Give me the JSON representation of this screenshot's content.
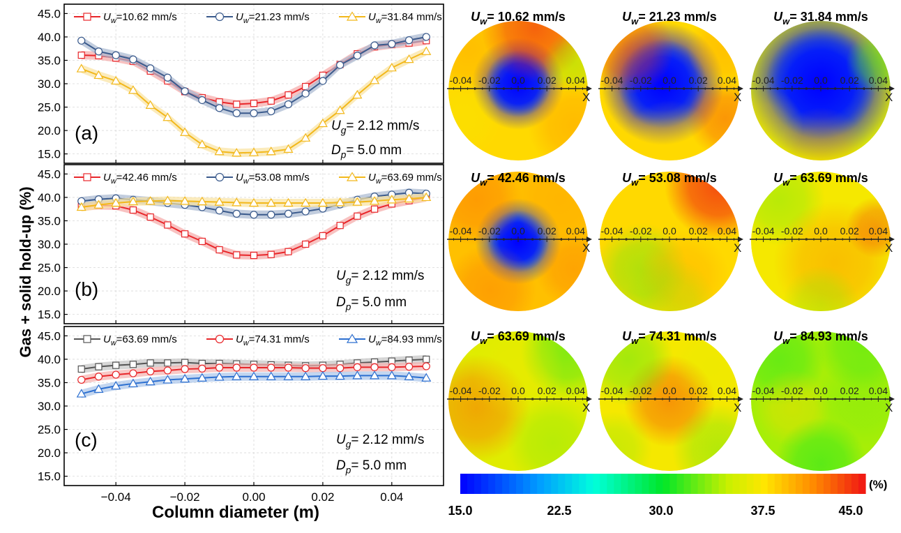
{
  "chart_data": {
    "type": "line",
    "shared_ylabel": "Gas + solid hold-up (%)",
    "shared_xlabel": "Column diameter (m)",
    "xlim": [
      -0.055,
      0.055
    ],
    "ylim": [
      13,
      47
    ],
    "x": [
      -0.05,
      -0.045,
      -0.04,
      -0.035,
      -0.03,
      -0.025,
      -0.02,
      -0.015,
      -0.01,
      -0.005,
      0.0,
      0.005,
      0.01,
      0.015,
      0.02,
      0.025,
      0.03,
      0.035,
      0.04,
      0.045,
      0.05
    ],
    "x_ticks": [
      -0.04,
      -0.02,
      0.0,
      0.02,
      0.04
    ],
    "x_tick_labels": [
      "−0.04",
      "−0.02",
      "0.00",
      "0.02",
      "0.04"
    ],
    "y_ticks": [
      15,
      20,
      25,
      30,
      35,
      40,
      45
    ],
    "y_tick_labels": [
      "15.0",
      "20.0",
      "25.0",
      "30.0",
      "35.0",
      "40.0",
      "45.0"
    ],
    "panels": [
      {
        "panel_label": "(a)",
        "ann_ug_sym": "U",
        "ann_ug_sub": "g",
        "ann_ug_val": "= 2.12 mm/s",
        "ann_dp_sym": "D",
        "ann_dp_sub": "p",
        "ann_dp_val": "= 5.0 mm",
        "series": [
          {
            "legend_sym": "U",
            "legend_sub": "w",
            "legend_val": "=10.62 mm/s",
            "color": "#e8262a",
            "band": "#f5a8a6",
            "marker": "square",
            "values": [
              36.1,
              36.0,
              35.5,
              34.8,
              32.7,
              30.6,
              28.3,
              27.0,
              26.1,
              25.6,
              25.8,
              26.3,
              27.6,
              29.4,
              31.8,
              34.1,
              36.4,
              37.9,
              38.4,
              38.7,
              39.2
            ]
          },
          {
            "legend_sym": "U",
            "legend_sub": "w",
            "legend_val": "=21.23 mm/s",
            "color": "#3a5a8c",
            "band": "#a8b8d0",
            "marker": "circle",
            "values": [
              39.2,
              36.9,
              36.1,
              35.2,
              33.3,
              31.3,
              28.4,
              26.5,
              24.8,
              23.7,
              23.7,
              24.1,
              25.6,
              27.9,
              30.6,
              34.0,
              36.0,
              38.2,
              38.5,
              39.3,
              40.0
            ]
          },
          {
            "legend_sym": "U",
            "legend_sub": "w",
            "legend_val": "=31.84 mm/s",
            "color": "#f2b81b",
            "band": "#fae3a0",
            "marker": "triangle",
            "values": [
              33.2,
              31.8,
              30.6,
              28.6,
              25.4,
              22.8,
              19.6,
              17.0,
              15.5,
              15.2,
              15.3,
              15.5,
              16.0,
              18.4,
              21.5,
              24.3,
              27.6,
              30.7,
              33.4,
              35.2,
              36.9
            ]
          }
        ]
      },
      {
        "panel_label": "(b)",
        "ann_ug_sym": "U",
        "ann_ug_sub": "g",
        "ann_ug_val": "= 2.12 mm/s",
        "ann_dp_sym": "D",
        "ann_dp_sub": "p",
        "ann_dp_val": "= 5.0 mm",
        "series": [
          {
            "legend_sym": "U",
            "legend_sub": "w",
            "legend_val": "=42.46 mm/s",
            "color": "#e8262a",
            "band": "#f5a8a6",
            "marker": "square",
            "values": [
              38.0,
              38.3,
              38.2,
              37.3,
              35.8,
              34.1,
              32.2,
              30.6,
              28.8,
              27.7,
              27.6,
              27.8,
              28.4,
              30.0,
              31.8,
              34.0,
              36.0,
              37.5,
              38.6,
              39.3,
              40.0
            ]
          },
          {
            "legend_sym": "U",
            "legend_sub": "w",
            "legend_val": "=53.08 mm/s",
            "color": "#3a5a8c",
            "band": "#a8b8d0",
            "marker": "circle",
            "values": [
              39.2,
              39.6,
              39.8,
              39.5,
              39.2,
              38.8,
              38.4,
              37.9,
              37.2,
              36.5,
              36.3,
              36.3,
              36.5,
              37.0,
              37.6,
              38.5,
              39.5,
              40.2,
              40.6,
              41.0,
              40.8
            ]
          },
          {
            "legend_sym": "U",
            "legend_sub": "w",
            "legend_val": "=63.69 mm/s",
            "color": "#f2b81b",
            "band": "#fae3a0",
            "marker": "triangle",
            "values": [
              37.9,
              38.4,
              38.8,
              39.1,
              39.2,
              39.3,
              39.2,
              39.1,
              39.0,
              38.9,
              38.8,
              38.8,
              38.8,
              38.8,
              38.8,
              38.9,
              39.0,
              39.2,
              39.5,
              39.7,
              40.0
            ]
          }
        ]
      },
      {
        "panel_label": "(c)",
        "ann_ug_sym": "U",
        "ann_ug_sub": "g",
        "ann_ug_val": "= 2.12 mm/s",
        "ann_dp_sym": "D",
        "ann_dp_sub": "p",
        "ann_dp_val": "= 5.0 mm",
        "series": [
          {
            "legend_sym": "U",
            "legend_sub": "w",
            "legend_val": "=63.69 mm/s",
            "color": "#555555",
            "band": "#c4c4c4",
            "marker": "square",
            "values": [
              37.9,
              38.4,
              38.7,
              38.9,
              39.2,
              39.2,
              39.3,
              39.1,
              39.1,
              39.0,
              38.9,
              38.8,
              38.7,
              38.6,
              38.7,
              38.9,
              39.2,
              39.4,
              39.6,
              39.8,
              40.0
            ]
          },
          {
            "legend_sym": "U",
            "legend_sub": "w",
            "legend_val": "=74.31 mm/s",
            "color": "#e8262a",
            "band": "#f5b0ae",
            "marker": "circle",
            "values": [
              35.6,
              36.3,
              36.7,
              37.0,
              37.4,
              37.6,
              37.9,
              38.0,
              38.2,
              38.2,
              38.2,
              38.2,
              38.2,
              38.1,
              38.1,
              38.1,
              38.3,
              38.3,
              38.3,
              38.4,
              38.5
            ]
          },
          {
            "legend_sym": "U",
            "legend_sub": "w",
            "legend_val": "=84.93 mm/s",
            "color": "#2c6fd0",
            "band": "#a9c4ea",
            "marker": "triangle",
            "values": [
              32.6,
              33.6,
              34.3,
              34.8,
              35.2,
              35.6,
              35.8,
              36.0,
              36.2,
              36.3,
              36.3,
              36.3,
              36.3,
              36.3,
              36.4,
              36.4,
              36.5,
              36.5,
              36.5,
              36.3,
              36.0
            ]
          }
        ]
      }
    ],
    "maps": {
      "axis_ticks": [
        "-0.04",
        "-0.02",
        "0.0",
        "0.02",
        "0.04"
      ],
      "axis_label": "X",
      "items": [
        {
          "title_sym": "U",
          "title_sub": "w",
          "title_val": "= 10.62 mm/s",
          "blobs": [
            [
              0.5,
              0.45,
              0.3,
              15,
              0.75
            ],
            [
              0.62,
              0.05,
              0.35,
              45,
              0.6
            ],
            [
              0.15,
              0.2,
              0.3,
              41,
              0.35
            ],
            [
              0.9,
              0.3,
              0.2,
              33,
              0.4
            ],
            [
              0.9,
              0.75,
              0.3,
              41,
              0.4
            ],
            [
              0.1,
              0.7,
              0.25,
              37,
              0.35
            ]
          ],
          "base": 38
        },
        {
          "title_sym": "U",
          "title_sub": "w",
          "title_val": "= 21.23 mm/s",
          "blobs": [
            [
              0.45,
              0.45,
              0.4,
              15,
              0.9
            ],
            [
              0.2,
              0.2,
              0.3,
              44,
              0.45
            ],
            [
              0.9,
              0.2,
              0.25,
              40,
              0.45
            ],
            [
              0.9,
              0.7,
              0.25,
              44,
              0.4
            ],
            [
              0.5,
              0.9,
              0.3,
              38,
              0.3
            ]
          ],
          "base": 38
        },
        {
          "title_sym": "U",
          "title_sub": "w",
          "title_val": "= 31.84 mm/s",
          "blobs": [
            [
              0.5,
              0.45,
              0.5,
              15,
              0.95
            ],
            [
              0.9,
              0.3,
              0.2,
              32,
              0.5
            ],
            [
              0.5,
              0.95,
              0.3,
              40,
              0.3
            ],
            [
              0.1,
              0.75,
              0.25,
              38,
              0.3
            ]
          ],
          "base": 36
        },
        {
          "title_sym": "U",
          "title_sub": "w",
          "title_val": "= 42.46 mm/s",
          "blobs": [
            [
              0.5,
              0.5,
              0.28,
              17,
              0.85
            ],
            [
              0.2,
              0.2,
              0.3,
              42,
              0.45
            ],
            [
              0.8,
              0.2,
              0.3,
              40,
              0.4
            ],
            [
              0.3,
              0.85,
              0.3,
              42,
              0.4
            ],
            [
              0.9,
              0.7,
              0.25,
              42,
              0.35
            ]
          ],
          "base": 39
        },
        {
          "title_sym": "U",
          "title_sub": "w",
          "title_val": "= 53.08 mm/s",
          "blobs": [
            [
              0.85,
              0.1,
              0.35,
              45,
              0.7
            ],
            [
              0.3,
              0.7,
              0.3,
              32,
              0.45
            ],
            [
              0.6,
              0.75,
              0.3,
              40,
              0.4
            ],
            [
              0.15,
              0.25,
              0.3,
              38,
              0.3
            ],
            [
              0.5,
              0.95,
              0.3,
              33,
              0.3
            ]
          ],
          "base": 38
        },
        {
          "title_sym": "U",
          "title_sub": "w",
          "title_val": "= 63.69 mm/s",
          "blobs": [
            [
              0.2,
              0.2,
              0.3,
              33,
              0.5
            ],
            [
              0.6,
              0.65,
              0.4,
              41,
              0.45
            ],
            [
              0.9,
              0.4,
              0.2,
              44,
              0.4
            ],
            [
              0.5,
              0.95,
              0.25,
              33,
              0.35
            ]
          ],
          "base": 37
        },
        {
          "title_sym": "U",
          "title_sub": "w",
          "title_val": "= 63.69 mm/s",
          "blobs": [
            [
              0.2,
              0.55,
              0.35,
              42,
              0.55
            ],
            [
              0.85,
              0.15,
              0.3,
              31,
              0.5
            ],
            [
              0.75,
              0.8,
              0.3,
              33,
              0.4
            ],
            [
              0.5,
              0.3,
              0.3,
              37,
              0.3
            ]
          ],
          "base": 36
        },
        {
          "title_sym": "U",
          "title_sub": "w",
          "title_val": "= 74.31 mm/s",
          "blobs": [
            [
              0.5,
              0.5,
              0.3,
              43,
              0.55
            ],
            [
              0.2,
              0.2,
              0.3,
              32,
              0.5
            ],
            [
              0.85,
              0.85,
              0.3,
              32,
              0.4
            ],
            [
              0.1,
              0.85,
              0.25,
              33,
              0.35
            ],
            [
              0.8,
              0.25,
              0.25,
              36,
              0.3
            ]
          ],
          "base": 37
        },
        {
          "title_sym": "U",
          "title_sub": "w",
          "title_val": "= 84.93 mm/s",
          "blobs": [
            [
              0.2,
              0.2,
              0.3,
              31,
              0.5
            ],
            [
              0.3,
              0.55,
              0.25,
              38,
              0.4
            ],
            [
              0.8,
              0.5,
              0.3,
              33,
              0.4
            ],
            [
              0.5,
              0.95,
              0.3,
              30,
              0.45
            ],
            [
              0.8,
              0.1,
              0.3,
              31,
              0.4
            ]
          ],
          "base": 34
        }
      ]
    },
    "colorbar": {
      "tick_labels": [
        "15.0",
        "22.5",
        "30.0",
        "37.5",
        "45.0"
      ],
      "unit": "(%)",
      "range": [
        15,
        45
      ]
    }
  }
}
